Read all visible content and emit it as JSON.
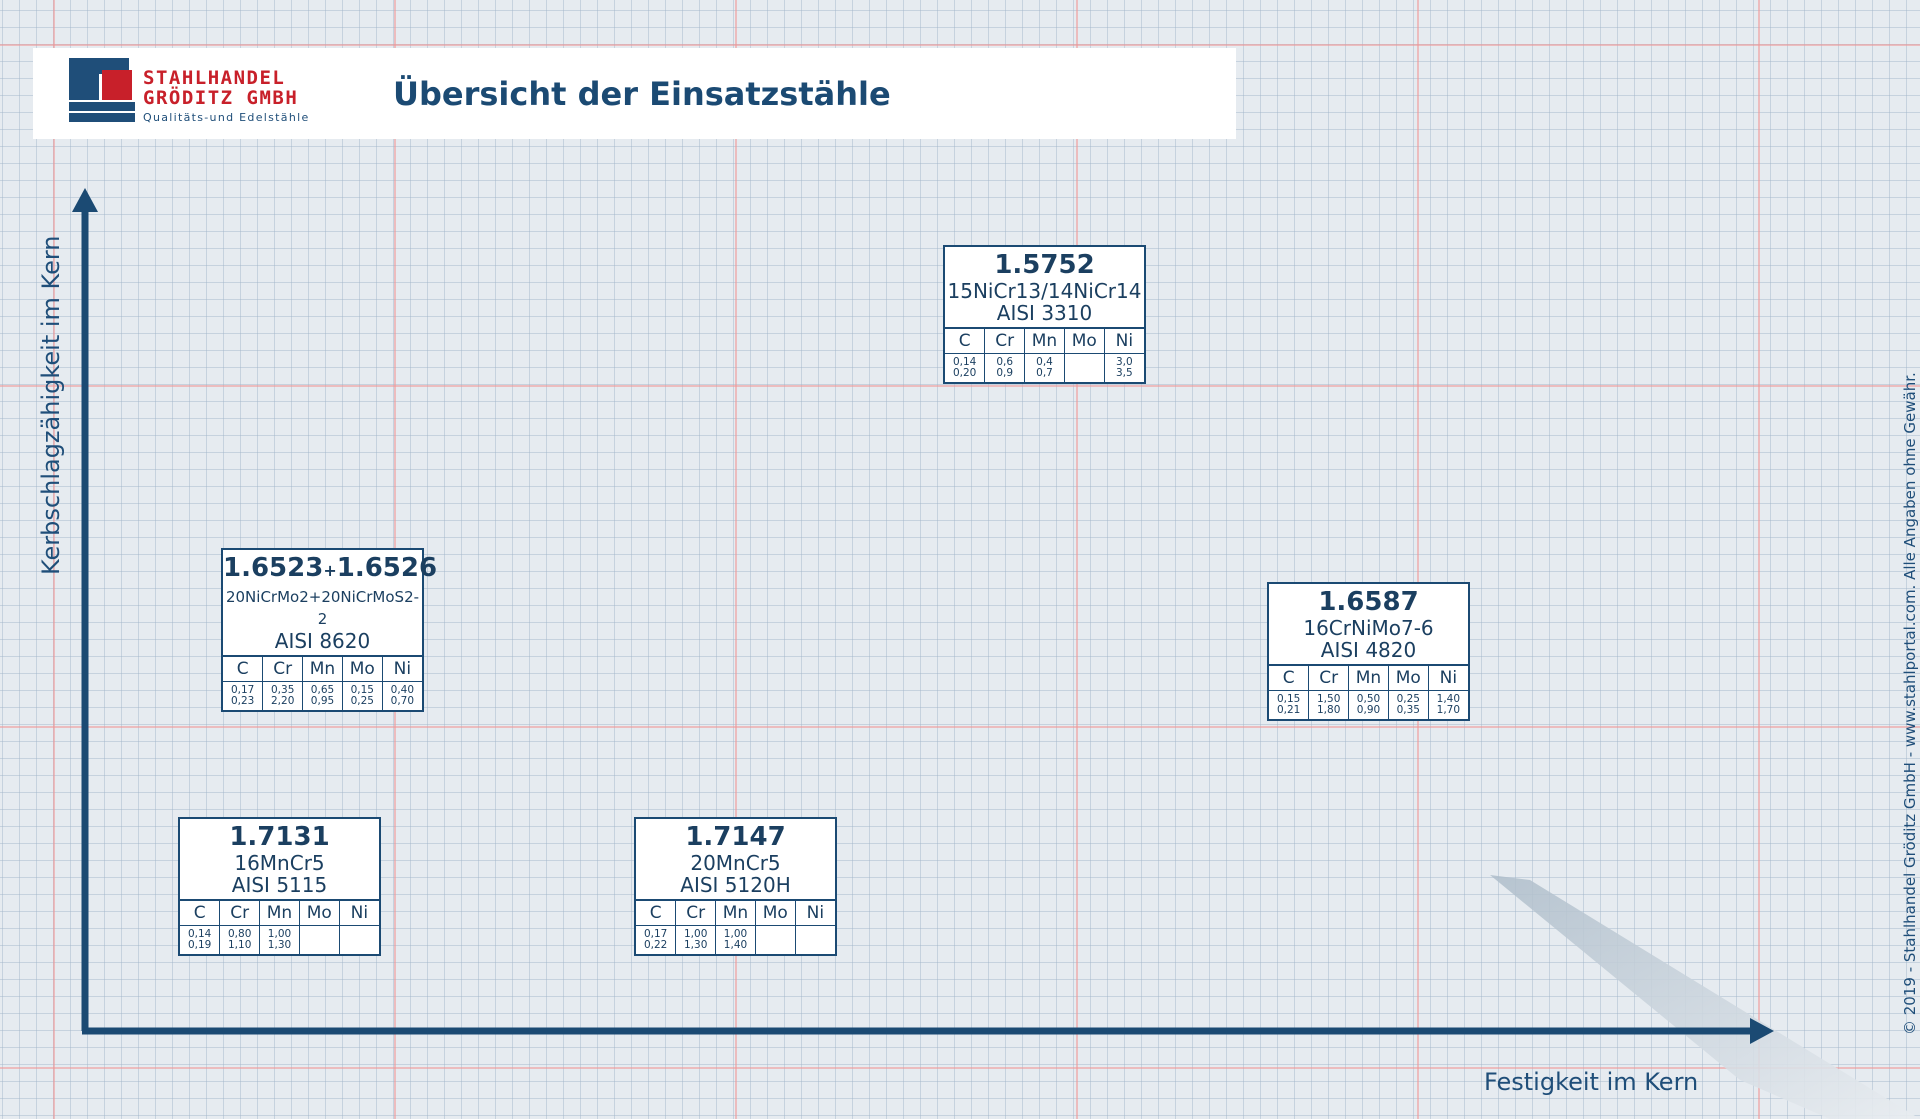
{
  "header": {
    "logo": {
      "line1": "STAHLHANDEL",
      "line2": "GRÖDITZ GMBH",
      "line3": "Qualitäts-und Edelstähle"
    },
    "title": "Übersicht der Einsatzstähle"
  },
  "axes": {
    "x_label": "Festigkeit im Kern",
    "y_label": "Kerbschlagzähigkeit im Kern"
  },
  "copyright": "© 2019 - Stahlhandel Gröditz GmbH - www.stahlportal.com.    Alle Angaben ohne Gewähr.",
  "colors": {
    "primary": "#1b4a73",
    "logo_red": "#c8202a",
    "grid_major": "#f09696",
    "background": "#e6ebf0"
  },
  "table_headers": [
    "C",
    "Cr",
    "Mn",
    "Mo",
    "Ni"
  ],
  "steels": [
    {
      "id": "s15752",
      "number": "1.5752",
      "name": "15NiCr13/14NiCr14",
      "aisi": "AISI 3310",
      "values": [
        [
          "0,14",
          "0,20"
        ],
        [
          "0,6",
          "0,9"
        ],
        [
          "0,4",
          "0,7"
        ],
        [
          "",
          ""
        ],
        [
          "3,0",
          "3,5"
        ]
      ]
    },
    {
      "id": "s16523",
      "number_a": "1.6523",
      "plus": "+",
      "number_b": "1.6526",
      "name": "20NiCrMo2+20NiCrMoS2-2",
      "aisi": "AISI 8620",
      "values": [
        [
          "0,17",
          "0,23"
        ],
        [
          "0,35",
          "2,20"
        ],
        [
          "0,65",
          "0,95"
        ],
        [
          "0,15",
          "0,25"
        ],
        [
          "0,40",
          "0,70"
        ]
      ]
    },
    {
      "id": "s16587",
      "number": "1.6587",
      "name": "16CrNiMo7-6",
      "aisi": "AISI 4820",
      "values": [
        [
          "0,15",
          "0,21"
        ],
        [
          "1,50",
          "1,80"
        ],
        [
          "0,50",
          "0,90"
        ],
        [
          "0,25",
          "0,35"
        ],
        [
          "1,40",
          "1,70"
        ]
      ]
    },
    {
      "id": "s17131",
      "number": "1.7131",
      "name": "16MnCr5",
      "aisi": "AISI 5115",
      "values": [
        [
          "0,14",
          "0,19"
        ],
        [
          "0,80",
          "1,10"
        ],
        [
          "1,00",
          "1,30"
        ],
        [
          "",
          ""
        ],
        [
          "",
          ""
        ]
      ]
    },
    {
      "id": "s17147",
      "number": "1.7147",
      "name": "20MnCr5",
      "aisi": "AISI 5120H",
      "values": [
        [
          "0,17",
          "0,22"
        ],
        [
          "1,00",
          "1,30"
        ],
        [
          "1,00",
          "1,40"
        ],
        [
          "",
          ""
        ],
        [
          "",
          ""
        ]
      ]
    }
  ]
}
